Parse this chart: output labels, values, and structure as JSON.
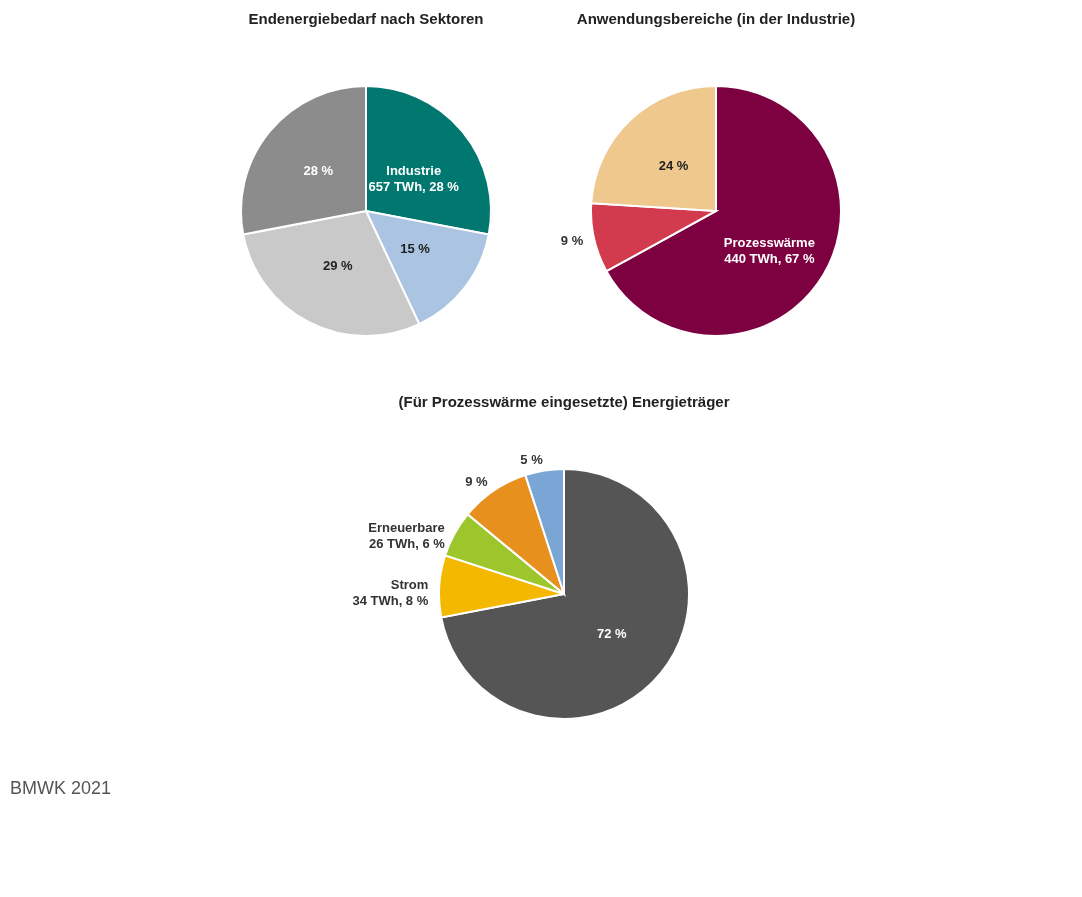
{
  "chart_data": [
    {
      "type": "pie",
      "title": "Endenergiebedarf nach Sektoren",
      "categories": [
        "Industrie",
        null,
        null,
        null
      ],
      "values": [
        28,
        15,
        29,
        28
      ],
      "value_labels": [
        "657 TWh, 28 %",
        "15 %",
        "29 %",
        "28 %"
      ],
      "colors": [
        "#00786f",
        "#aac4e2",
        "#c9c9c9",
        "#8c8c8c"
      ],
      "annotations": [
        "BMWK 2021"
      ]
    },
    {
      "type": "pie",
      "title": "Anwendungsbereiche (in der Industrie)",
      "categories": [
        "Prozesswärme",
        null,
        null
      ],
      "values": [
        67,
        9,
        24
      ],
      "value_labels": [
        "440 TWh, 67 %",
        "9 %",
        "24 %"
      ],
      "colors": [
        "#7d0041",
        "#d23a4e",
        "#efc88e"
      ]
    },
    {
      "type": "pie",
      "title": "(Für Prozesswärme eingesetzte) Energieträger",
      "categories": [
        null,
        "Strom",
        "Erneuerbare",
        null,
        null
      ],
      "values": [
        72,
        8,
        6,
        9,
        5
      ],
      "value_labels": [
        "72 %",
        "34 TWh, 8 %",
        "26 TWh, 6 %",
        "9 %",
        "5 %"
      ],
      "colors": [
        "#555555",
        "#f5b800",
        "#9dc52c",
        "#e8901e",
        "#7aa6d6"
      ]
    }
  ]
}
